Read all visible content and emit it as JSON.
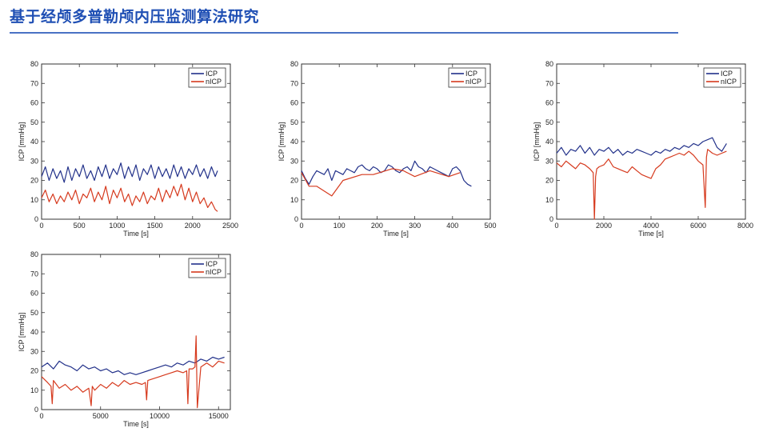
{
  "page": {
    "title": "基于经颅多普勒颅内压监测算法研究"
  },
  "colors": {
    "icp": "#22318a",
    "nicp": "#d63a1e"
  },
  "chart_data": [
    {
      "type": "line",
      "xlabel": "Time [s]",
      "ylabel": "ICP [mmHg]",
      "xlim": [
        0,
        2500
      ],
      "ylim": [
        0,
        80
      ],
      "xticks": [
        0,
        500,
        1000,
        1500,
        2000,
        2500
      ],
      "yticks": [
        0,
        10,
        20,
        30,
        40,
        50,
        60,
        70,
        80
      ],
      "legend": "top-right",
      "series": [
        {
          "name": "ICP",
          "x": [
            0,
            50,
            100,
            150,
            200,
            250,
            300,
            350,
            400,
            450,
            500,
            550,
            600,
            650,
            700,
            750,
            800,
            850,
            900,
            950,
            1000,
            1050,
            1100,
            1150,
            1200,
            1250,
            1300,
            1350,
            1400,
            1450,
            1500,
            1550,
            1600,
            1650,
            1700,
            1750,
            1800,
            1850,
            1900,
            1950,
            2000,
            2050,
            2100,
            2150,
            2200,
            2250,
            2300,
            2330
          ],
          "y": [
            22,
            27,
            20,
            26,
            21,
            25,
            19,
            27,
            20,
            26,
            22,
            28,
            21,
            25,
            20,
            27,
            22,
            28,
            21,
            26,
            23,
            29,
            21,
            27,
            22,
            28,
            20,
            26,
            23,
            28,
            21,
            27,
            22,
            26,
            21,
            28,
            22,
            27,
            21,
            26,
            23,
            28,
            22,
            26,
            21,
            27,
            22,
            25
          ]
        },
        {
          "name": "nICP",
          "x": [
            0,
            50,
            100,
            150,
            200,
            250,
            300,
            350,
            400,
            450,
            500,
            550,
            600,
            650,
            700,
            750,
            800,
            850,
            900,
            950,
            1000,
            1050,
            1100,
            1150,
            1200,
            1250,
            1300,
            1350,
            1400,
            1450,
            1500,
            1550,
            1600,
            1650,
            1700,
            1750,
            1800,
            1850,
            1900,
            1950,
            2000,
            2050,
            2100,
            2150,
            2200,
            2250,
            2300,
            2330
          ],
          "y": [
            11,
            15,
            9,
            13,
            8,
            12,
            9,
            14,
            10,
            15,
            8,
            13,
            11,
            16,
            9,
            14,
            10,
            17,
            8,
            15,
            11,
            16,
            9,
            13,
            7,
            12,
            9,
            14,
            8,
            12,
            10,
            16,
            9,
            15,
            11,
            17,
            12,
            18,
            10,
            16,
            9,
            14,
            8,
            11,
            6,
            9,
            5,
            4
          ]
        }
      ]
    },
    {
      "type": "line",
      "xlabel": "Time [s]",
      "ylabel": "ICP [mmHg]",
      "xlim": [
        0,
        500
      ],
      "ylim": [
        0,
        80
      ],
      "xticks": [
        0,
        100,
        200,
        300,
        400,
        500
      ],
      "yticks": [
        0,
        10,
        20,
        30,
        40,
        50,
        60,
        70,
        80
      ],
      "legend": "top-right",
      "series": [
        {
          "name": "ICP",
          "x": [
            0,
            10,
            20,
            30,
            40,
            50,
            60,
            70,
            80,
            90,
            100,
            110,
            120,
            130,
            140,
            150,
            160,
            170,
            180,
            190,
            200,
            210,
            220,
            230,
            240,
            250,
            260,
            270,
            280,
            290,
            300,
            310,
            320,
            330,
            340,
            350,
            360,
            370,
            380,
            390,
            400,
            410,
            420,
            430,
            440,
            450
          ],
          "y": [
            25,
            21,
            18,
            22,
            25,
            24,
            23,
            26,
            20,
            25,
            24,
            23,
            26,
            25,
            24,
            27,
            28,
            26,
            25,
            27,
            26,
            24,
            25,
            28,
            27,
            25,
            24,
            26,
            27,
            25,
            30,
            27,
            26,
            24,
            27,
            26,
            25,
            24,
            23,
            22,
            26,
            27,
            25,
            20,
            18,
            17
          ]
        },
        {
          "name": "nICP",
          "x": [
            0,
            20,
            40,
            80,
            110,
            160,
            190,
            240,
            270,
            300,
            340,
            390,
            420
          ],
          "y": [
            24,
            17,
            17,
            12,
            20,
            23,
            23,
            26,
            25,
            22,
            25,
            22,
            24
          ]
        }
      ]
    },
    {
      "type": "line",
      "xlabel": "Time [s]",
      "ylabel": "ICP [mmHg]",
      "xlim": [
        0,
        8000
      ],
      "ylim": [
        0,
        80
      ],
      "xticks": [
        0,
        2000,
        4000,
        6000,
        8000
      ],
      "yticks": [
        0,
        10,
        20,
        30,
        40,
        50,
        60,
        70,
        80
      ],
      "legend": "top-right",
      "series": [
        {
          "name": "ICP",
          "x": [
            0,
            200,
            400,
            600,
            800,
            1000,
            1200,
            1400,
            1600,
            1800,
            2000,
            2200,
            2400,
            2600,
            2800,
            3000,
            3200,
            3400,
            3600,
            3800,
            4000,
            4200,
            4400,
            4600,
            4800,
            5000,
            5200,
            5400,
            5600,
            5800,
            6000,
            6200,
            6400,
            6600,
            6800,
            7000,
            7200
          ],
          "y": [
            34,
            37,
            33,
            36,
            35,
            38,
            34,
            37,
            33,
            36,
            35,
            37,
            34,
            36,
            33,
            35,
            34,
            36,
            35,
            34,
            33,
            35,
            34,
            36,
            35,
            37,
            36,
            38,
            37,
            39,
            38,
            40,
            41,
            42,
            37,
            35,
            39
          ]
        },
        {
          "name": "nICP",
          "x": [
            0,
            200,
            400,
            600,
            800,
            1000,
            1200,
            1400,
            1550,
            1600,
            1650,
            1700,
            1800,
            2000,
            2200,
            2400,
            2600,
            2800,
            3000,
            3200,
            3400,
            3600,
            3800,
            4000,
            4200,
            4400,
            4600,
            4800,
            5000,
            5200,
            5400,
            5600,
            5800,
            6000,
            6200,
            6300,
            6350,
            6400,
            6600,
            6800,
            7000,
            7200
          ],
          "y": [
            29,
            27,
            30,
            28,
            26,
            29,
            28,
            26,
            24,
            0,
            22,
            26,
            27,
            28,
            31,
            27,
            26,
            25,
            24,
            27,
            25,
            23,
            22,
            21,
            26,
            28,
            31,
            32,
            33,
            34,
            33,
            35,
            33,
            30,
            28,
            6,
            32,
            36,
            34,
            33,
            34,
            35
          ]
        }
      ]
    },
    {
      "type": "line",
      "xlabel": "Time [s]",
      "ylabel": "ICP [mmHg]",
      "xlim": [
        0,
        16000
      ],
      "ylim": [
        0,
        80
      ],
      "xticks": [
        0,
        5000,
        10000,
        15000
      ],
      "yticks": [
        0,
        10,
        20,
        30,
        40,
        50,
        60,
        70,
        80
      ],
      "legend": "top-right",
      "series": [
        {
          "name": "ICP",
          "x": [
            0,
            500,
            1000,
            1500,
            2000,
            2500,
            3000,
            3500,
            4000,
            4500,
            5000,
            5500,
            6000,
            6500,
            7000,
            7500,
            8000,
            8500,
            9000,
            9500,
            10000,
            10500,
            11000,
            11500,
            12000,
            12500,
            13000,
            13500,
            14000,
            14500,
            15000,
            15500
          ],
          "y": [
            22,
            24,
            21,
            25,
            23,
            22,
            20,
            23,
            21,
            22,
            20,
            21,
            19,
            20,
            18,
            19,
            18,
            19,
            20,
            21,
            22,
            23,
            22,
            24,
            23,
            25,
            24,
            26,
            25,
            27,
            26,
            27
          ]
        },
        {
          "name": "nICP",
          "x": [
            0,
            500,
            800,
            900,
            1000,
            1500,
            2000,
            2500,
            3000,
            3500,
            4000,
            4200,
            4300,
            4500,
            5000,
            5500,
            6000,
            6500,
            7000,
            7500,
            8000,
            8500,
            8800,
            8900,
            9000,
            9500,
            10000,
            10500,
            11000,
            11500,
            12000,
            12300,
            12400,
            12500,
            12800,
            13000,
            13100,
            13200,
            13500,
            14000,
            14500,
            15000,
            15500
          ],
          "y": [
            17,
            14,
            12,
            3,
            15,
            11,
            13,
            10,
            12,
            9,
            11,
            2,
            12,
            10,
            13,
            11,
            14,
            12,
            15,
            13,
            14,
            13,
            14,
            5,
            15,
            16,
            17,
            18,
            19,
            20,
            19,
            20,
            3,
            21,
            21,
            22,
            38,
            1,
            22,
            24,
            22,
            25,
            24
          ]
        }
      ]
    }
  ]
}
